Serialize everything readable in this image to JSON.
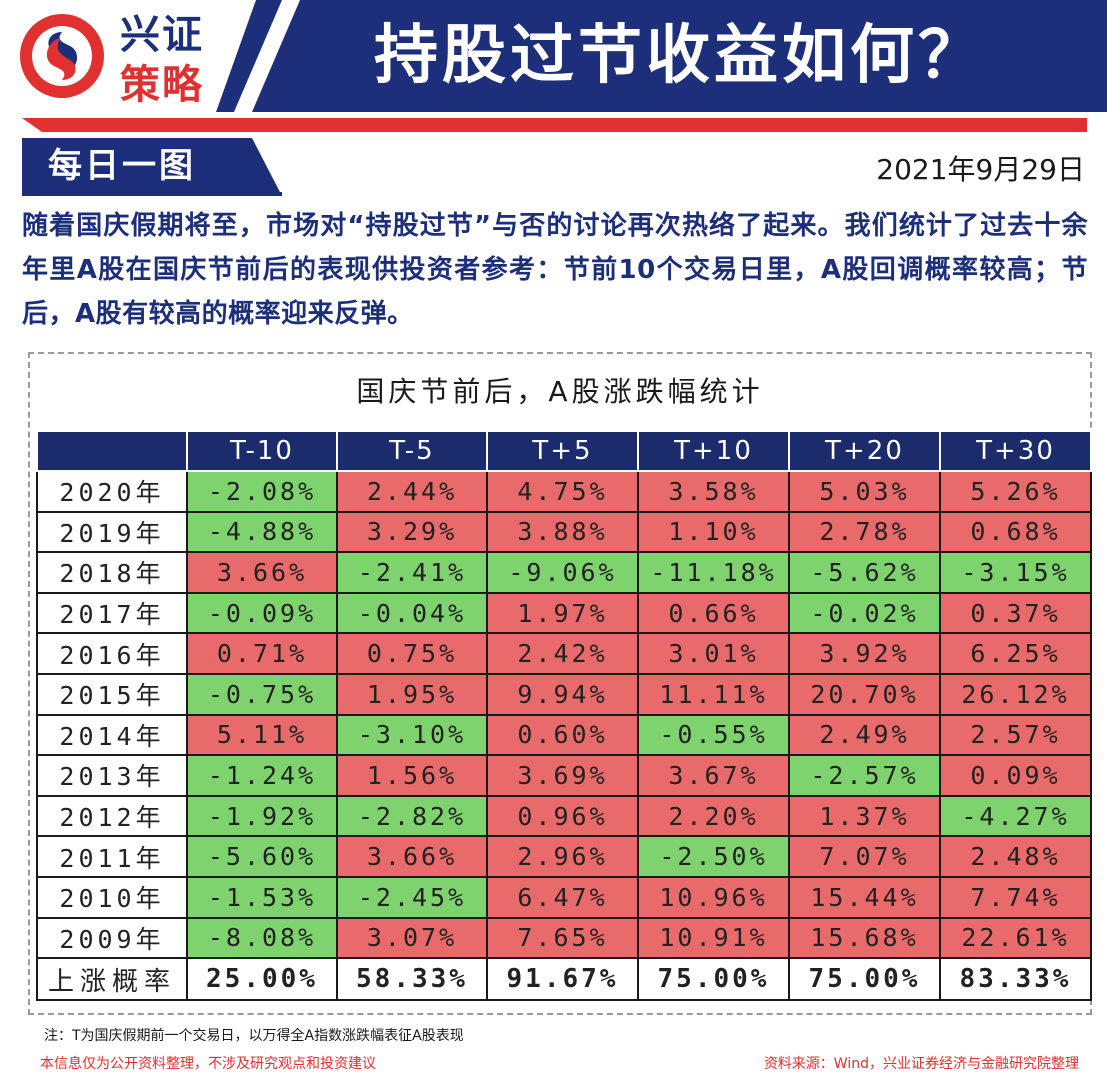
{
  "header": {
    "brand_top": "兴证",
    "brand_bottom": "策略",
    "title": "持股过节收益如何？",
    "colors": {
      "navy": "#1d2f7a",
      "red": "#e03030"
    }
  },
  "tag": {
    "label": "每日一图",
    "icon": "daily-chart-tag"
  },
  "date": "2021年9月29日",
  "intro": "随着国庆假期将至，市场对“持股过节”与否的讨论再次热络了起来。我们统计了过去十余年里A股在国庆节前后的表现供投资者参考：节前10个交易日里，A股回调概率较高；节后，A股有较高的概率迎来反弹。",
  "table": {
    "title": "国庆节前后，A股涨跌幅统计",
    "columns": [
      "T-10",
      "T-5",
      "T+5",
      "T+10",
      "T+20",
      "T+30"
    ],
    "rows": [
      {
        "year": "2020年",
        "values": [
          "-2.08%",
          "2.44%",
          "4.75%",
          "3.58%",
          "5.03%",
          "5.26%"
        ]
      },
      {
        "year": "2019年",
        "values": [
          "-4.88%",
          "3.29%",
          "3.88%",
          "1.10%",
          "2.78%",
          "0.68%"
        ]
      },
      {
        "year": "2018年",
        "values": [
          "3.66%",
          "-2.41%",
          "-9.06%",
          "-11.18%",
          "-5.62%",
          "-3.15%"
        ]
      },
      {
        "year": "2017年",
        "values": [
          "-0.09%",
          "-0.04%",
          "1.97%",
          "0.66%",
          "-0.02%",
          "0.37%"
        ]
      },
      {
        "year": "2016年",
        "values": [
          "0.71%",
          "0.75%",
          "2.42%",
          "3.01%",
          "3.92%",
          "6.25%"
        ]
      },
      {
        "year": "2015年",
        "values": [
          "-0.75%",
          "1.95%",
          "9.94%",
          "11.11%",
          "20.70%",
          "26.12%"
        ]
      },
      {
        "year": "2014年",
        "values": [
          "5.11%",
          "-3.10%",
          "0.60%",
          "-0.55%",
          "2.49%",
          "2.57%"
        ]
      },
      {
        "year": "2013年",
        "values": [
          "-1.24%",
          "1.56%",
          "3.69%",
          "3.67%",
          "-2.57%",
          "0.09%"
        ]
      },
      {
        "year": "2012年",
        "values": [
          "-1.92%",
          "-2.82%",
          "0.96%",
          "2.20%",
          "1.37%",
          "-4.27%"
        ]
      },
      {
        "year": "2011年",
        "values": [
          "-5.60%",
          "3.66%",
          "2.96%",
          "-2.50%",
          "7.07%",
          "2.48%"
        ]
      },
      {
        "year": "2010年",
        "values": [
          "-1.53%",
          "-2.45%",
          "6.47%",
          "10.96%",
          "15.44%",
          "7.74%"
        ]
      },
      {
        "year": "2009年",
        "values": [
          "-8.08%",
          "3.07%",
          "7.65%",
          "10.91%",
          "15.68%",
          "22.61%"
        ]
      }
    ],
    "probability": {
      "label": "上涨概率",
      "values": [
        "25.00%",
        "58.33%",
        "91.67%",
        "75.00%",
        "75.00%",
        "83.33%"
      ]
    },
    "colors": {
      "up": "#e96a6b",
      "down": "#7ed36f",
      "header": "#1b2b6b"
    }
  },
  "footer": {
    "note": "注：T为国庆假期前一个交易日，以万得全A指数涨跌幅表征A股表现",
    "disclaimer": "本信息仅为公开资料整理，不涉及研究观点和投资建议",
    "source": "资料来源：Wind，兴业证券经济与金融研究院整理"
  }
}
